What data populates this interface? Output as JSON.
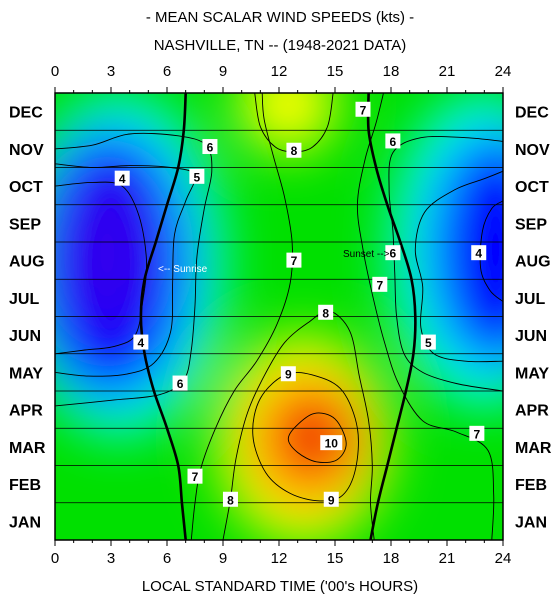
{
  "chart_data": {
    "type": "heatmap",
    "title": "- MEAN SCALAR WIND SPEEDS (kts) -",
    "subtitle": "NASHVILLE, TN -- (1948-2021 DATA)",
    "xlabel": "LOCAL STANDARD TIME ('00's HOURS)",
    "xlim": [
      0,
      24
    ],
    "x_ticks": [
      "0",
      "3",
      "6",
      "9",
      "12",
      "15",
      "18",
      "21",
      "24"
    ],
    "y_categories": [
      "JAN",
      "FEB",
      "MAR",
      "APR",
      "MAY",
      "JUN",
      "JUL",
      "AUG",
      "SEP",
      "OCT",
      "NOV",
      "DEC"
    ],
    "colors": {
      "low": "#3300ee",
      "blue": "#0000ff",
      "cyan": "#00ffff",
      "green": "#00e000",
      "yellow": "#ffff00",
      "orange": "#ff8c00",
      "high": "#ee0000"
    },
    "contour_labels": [
      {
        "text": "7",
        "x": 16.5,
        "y": 11.55
      },
      {
        "text": "6",
        "x": 8.3,
        "y": 10.55
      },
      {
        "text": "8",
        "x": 12.8,
        "y": 10.45
      },
      {
        "text": "6",
        "x": 18.1,
        "y": 10.7
      },
      {
        "text": "4",
        "x": 3.6,
        "y": 9.7
      },
      {
        "text": "5",
        "x": 7.6,
        "y": 9.75
      },
      {
        "text": "6",
        "x": 18.1,
        "y": 7.7
      },
      {
        "text": "4",
        "x": 22.7,
        "y": 7.7
      },
      {
        "text": "7",
        "x": 12.8,
        "y": 7.5
      },
      {
        "text": "7",
        "x": 17.4,
        "y": 6.85
      },
      {
        "text": "8",
        "x": 14.5,
        "y": 6.1
      },
      {
        "text": "4",
        "x": 4.6,
        "y": 5.3
      },
      {
        "text": "5",
        "x": 20.0,
        "y": 5.3
      },
      {
        "text": "6",
        "x": 6.7,
        "y": 4.2
      },
      {
        "text": "9",
        "x": 12.5,
        "y": 4.45
      },
      {
        "text": "10",
        "x": 14.8,
        "y": 2.6
      },
      {
        "text": "7",
        "x": 22.6,
        "y": 2.85
      },
      {
        "text": "7",
        "x": 7.5,
        "y": 1.7
      },
      {
        "text": "8",
        "x": 9.4,
        "y": 1.08
      },
      {
        "text": "9",
        "x": 14.8,
        "y": 1.08
      }
    ],
    "annotations": {
      "sunrise": "<-- Sunrise",
      "sunset": "Sunset -->"
    },
    "sunrise_curve": [
      [
        7.0,
        0.0
      ],
      [
        6.8,
        1.0
      ],
      [
        6.6,
        2.0
      ],
      [
        6.0,
        3.0
      ],
      [
        5.3,
        4.0
      ],
      [
        4.8,
        5.0
      ],
      [
        4.6,
        6.0
      ],
      [
        4.8,
        7.0
      ],
      [
        5.4,
        8.0
      ],
      [
        6.0,
        9.0
      ],
      [
        6.6,
        10.0
      ],
      [
        6.9,
        11.0
      ],
      [
        7.0,
        12.0
      ]
    ],
    "sunset_curve": [
      [
        16.9,
        0.0
      ],
      [
        17.3,
        1.0
      ],
      [
        17.8,
        2.0
      ],
      [
        18.3,
        3.0
      ],
      [
        18.8,
        4.0
      ],
      [
        19.2,
        5.0
      ],
      [
        19.3,
        6.0
      ],
      [
        19.1,
        7.0
      ],
      [
        18.5,
        8.0
      ],
      [
        17.8,
        9.0
      ],
      [
        17.2,
        10.0
      ],
      [
        16.8,
        11.0
      ],
      [
        16.8,
        12.0
      ]
    ]
  }
}
